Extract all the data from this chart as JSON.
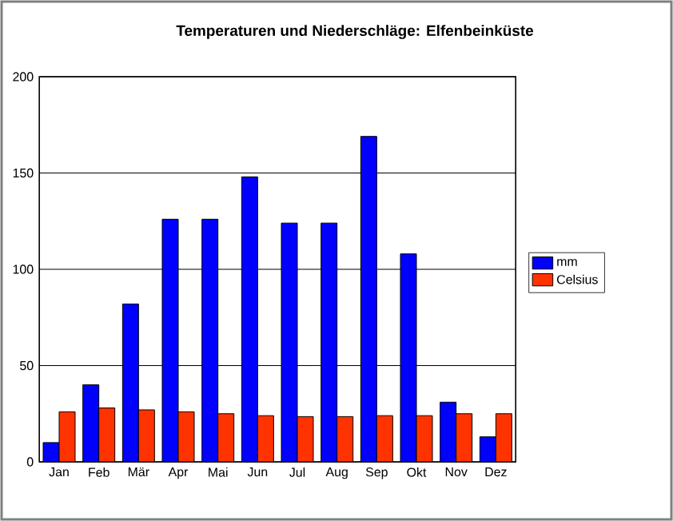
{
  "chart_data": {
    "type": "bar",
    "title": "Temperaturen und Niederschläge: Elfenbeinküste",
    "categories": [
      "Jan",
      "Feb",
      "Mär",
      "Apr",
      "Mai",
      "Jun",
      "Jul",
      "Aug",
      "Sep",
      "Okt",
      "Nov",
      "Dez"
    ],
    "series": [
      {
        "name": "mm",
        "color": "#0000ff",
        "values": [
          10,
          40,
          82,
          126,
          126,
          148,
          124,
          124,
          169,
          108,
          31,
          13
        ]
      },
      {
        "name": "Celsius",
        "color": "#ff3300",
        "values": [
          26,
          28,
          27,
          26,
          25,
          24,
          23.5,
          23.5,
          24,
          24,
          25,
          25
        ]
      }
    ],
    "ylim": [
      0,
      200
    ],
    "yticks": [
      0,
      50,
      100,
      150,
      200
    ],
    "grid": "y",
    "legend": "right"
  }
}
